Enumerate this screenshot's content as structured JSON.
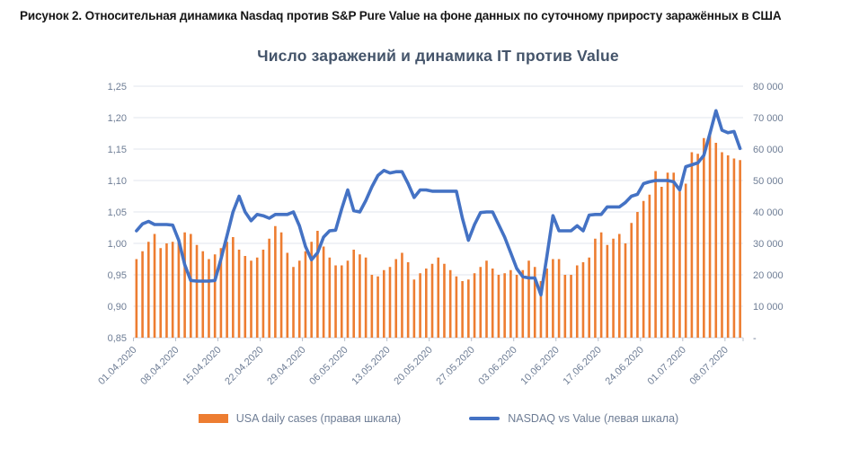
{
  "figure_caption": "Рисунок 2. Относительная динамика Nasdaq против S&P Pure Value на фоне данных по суточному приросту заражённых в США",
  "chart_data": {
    "type": "combo",
    "title": "Число заражений и динамика IT против Value",
    "grid": "horizontal",
    "legend_position": "bottom",
    "x_tick_labels": [
      "01.04.2020",
      "08.04.2020",
      "15.04.2020",
      "22.04.2020",
      "29.04.2020",
      "06.05.2020",
      "13.05.2020",
      "20.05.2020",
      "27.05.2020",
      "03.06.2020",
      "10.06.2020",
      "17.06.2020",
      "24.06.2020",
      "01.07.2020",
      "08.07.2020"
    ],
    "x_range_note": "daily data, 01.04.2020 - 10.07.2020",
    "left_axis": {
      "min": 0.85,
      "max": 1.25,
      "tick_labels_top_to_bottom": [
        "1,25",
        "1,20",
        "1,15",
        "1,10",
        "1,05",
        "1,00",
        "0,95",
        "0,90",
        "0,85"
      ]
    },
    "right_axis": {
      "min": 0,
      "max": 80000,
      "tick_labels_top_to_bottom": [
        "80 000",
        "70 000",
        "60 000",
        "50 000",
        "40 000",
        "30 000",
        "20 000",
        "10 000",
        "-"
      ]
    },
    "series": [
      {
        "name": "USA daily cases (правая шкала)",
        "type": "bar",
        "axis": "right",
        "color": "#ED7D31",
        "values": [
          25000,
          27500,
          30500,
          33000,
          28500,
          30000,
          30500,
          31500,
          33500,
          33000,
          29500,
          27500,
          25000,
          26500,
          28500,
          30500,
          32000,
          28000,
          26000,
          24500,
          25500,
          28000,
          31500,
          35500,
          33500,
          27000,
          22500,
          24500,
          27500,
          30500,
          34000,
          29000,
          25500,
          23000,
          23000,
          24500,
          28000,
          26500,
          25500,
          20000,
          19500,
          21500,
          22500,
          25000,
          27000,
          24000,
          18500,
          20500,
          22000,
          23500,
          25500,
          23500,
          21500,
          19500,
          18000,
          18500,
          20500,
          22500,
          24500,
          22000,
          20000,
          20500,
          21500,
          20000,
          21500,
          24500,
          22500,
          18000,
          22000,
          25000,
          25000,
          20000,
          20000,
          23000,
          24000,
          25500,
          31500,
          33500,
          29500,
          31500,
          33000,
          30000,
          36500,
          40000,
          43500,
          45500,
          53000,
          48000,
          52500,
          52500,
          46500,
          49000,
          59000,
          58500,
          63500,
          65500,
          62000,
          59000,
          58000,
          57000,
          56500
        ]
      },
      {
        "name": "NASDAQ vs Value (левая шкала)",
        "type": "line",
        "axis": "left",
        "color": "#4472C4",
        "values": [
          1.02,
          1.031,
          1.035,
          1.03,
          1.03,
          1.03,
          1.029,
          1.005,
          0.966,
          0.941,
          0.94,
          0.94,
          0.94,
          0.941,
          0.975,
          1.012,
          1.05,
          1.075,
          1.05,
          1.036,
          1.046,
          1.044,
          1.04,
          1.046,
          1.046,
          1.046,
          1.05,
          1.028,
          0.995,
          0.974,
          0.985,
          1.01,
          1.02,
          1.021,
          1.055,
          1.085,
          1.052,
          1.05,
          1.068,
          1.09,
          1.108,
          1.116,
          1.112,
          1.114,
          1.114,
          1.095,
          1.073,
          1.085,
          1.085,
          1.083,
          1.083,
          1.083,
          1.083,
          1.083,
          1.04,
          1.005,
          1.03,
          1.049,
          1.05,
          1.05,
          1.03,
          1.01,
          0.985,
          0.96,
          0.947,
          0.945,
          0.945,
          0.918,
          0.98,
          1.044,
          1.02,
          1.02,
          1.02,
          1.028,
          1.02,
          1.045,
          1.046,
          1.046,
          1.058,
          1.058,
          1.058,
          1.065,
          1.075,
          1.078,
          1.095,
          1.098,
          1.1,
          1.1,
          1.1,
          1.098,
          1.085,
          1.122,
          1.125,
          1.128,
          1.14,
          1.175,
          1.211,
          1.18,
          1.176,
          1.178,
          1.151
        ]
      }
    ]
  },
  "legend": {
    "items": [
      {
        "label": "USA daily cases (правая шкала)",
        "marker": "bar",
        "color": "#ED7D31"
      },
      {
        "label": "NASDAQ vs Value (левая шкала)",
        "marker": "line",
        "color": "#4472C4"
      }
    ]
  },
  "colors": {
    "title": "#44546A",
    "axis_text": "#6E7D95",
    "gridline": "#E1E5EC",
    "axis_line": "#CCD2DC",
    "tick_mark": "#B9C0CC",
    "bar": "#ED7D31",
    "line": "#4472C4"
  }
}
